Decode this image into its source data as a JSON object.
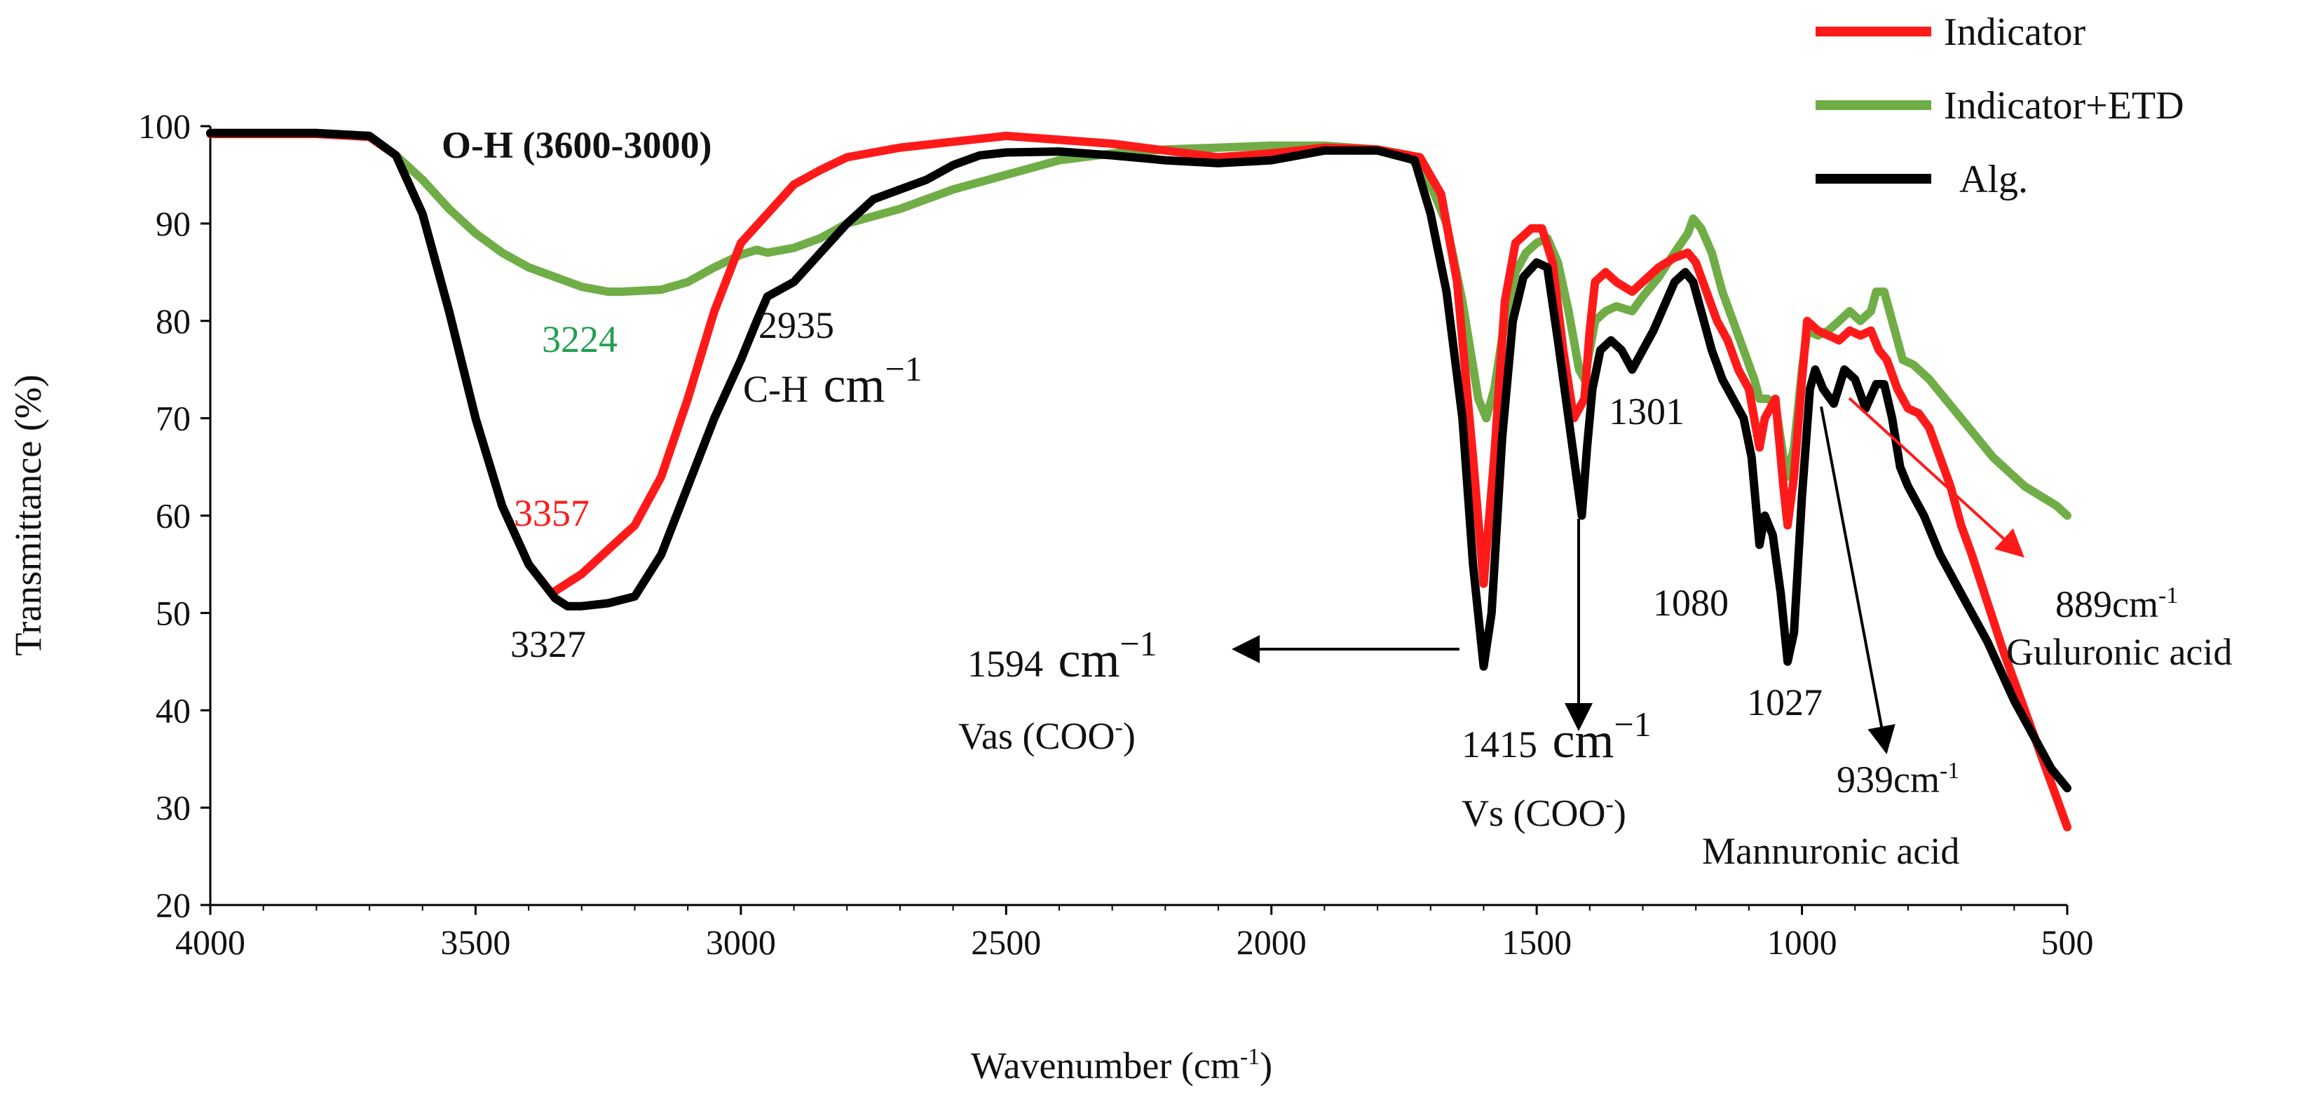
{
  "chart_data": {
    "type": "line",
    "xlabel": "Wavenumber (cm-1)",
    "ylabel": "Transmittance (%)",
    "xlim": [
      4000,
      500
    ],
    "ylim": [
      20,
      100
    ],
    "xticks": [
      4000,
      3500,
      3000,
      2500,
      2000,
      1500,
      1000,
      500
    ],
    "yticks": [
      20,
      30,
      40,
      50,
      60,
      70,
      80,
      90,
      100
    ],
    "legend_position": "top-right",
    "series": [
      {
        "name": "Indicator",
        "color": "#ff1a1a",
        "points": [
          [
            4000,
            99.2
          ],
          [
            3800,
            99.2
          ],
          [
            3700,
            98.9
          ],
          [
            3650,
            97
          ],
          [
            3600,
            91
          ],
          [
            3550,
            81
          ],
          [
            3500,
            70
          ],
          [
            3450,
            61
          ],
          [
            3400,
            55
          ],
          [
            3357,
            52
          ],
          [
            3300,
            54
          ],
          [
            3250,
            56.5
          ],
          [
            3200,
            59
          ],
          [
            3150,
            64
          ],
          [
            3100,
            72
          ],
          [
            3050,
            81
          ],
          [
            3000,
            88
          ],
          [
            2950,
            91
          ],
          [
            2900,
            94
          ],
          [
            2850,
            95.5
          ],
          [
            2800,
            96.8
          ],
          [
            2700,
            97.8
          ],
          [
            2600,
            98.4
          ],
          [
            2500,
            99
          ],
          [
            2400,
            98.6
          ],
          [
            2300,
            98.2
          ],
          [
            2200,
            97.5
          ],
          [
            2100,
            96.8
          ],
          [
            2000,
            97.2
          ],
          [
            1900,
            97.8
          ],
          [
            1800,
            97.6
          ],
          [
            1720,
            96.8
          ],
          [
            1680,
            93
          ],
          [
            1650,
            84
          ],
          [
            1620,
            66
          ],
          [
            1600,
            53
          ],
          [
            1580,
            66
          ],
          [
            1560,
            82
          ],
          [
            1540,
            88
          ],
          [
            1510,
            89.5
          ],
          [
            1490,
            89.5
          ],
          [
            1470,
            86
          ],
          [
            1450,
            77
          ],
          [
            1430,
            70
          ],
          [
            1410,
            72
          ],
          [
            1400,
            79
          ],
          [
            1390,
            84
          ],
          [
            1370,
            85
          ],
          [
            1350,
            84
          ],
          [
            1320,
            83
          ],
          [
            1300,
            84
          ],
          [
            1270,
            85.5
          ],
          [
            1240,
            86.5
          ],
          [
            1215,
            87
          ],
          [
            1200,
            86
          ],
          [
            1180,
            83
          ],
          [
            1160,
            80
          ],
          [
            1140,
            78
          ],
          [
            1120,
            75
          ],
          [
            1100,
            73
          ],
          [
            1080,
            67
          ],
          [
            1070,
            70
          ],
          [
            1050,
            72
          ],
          [
            1035,
            63
          ],
          [
            1027,
            59
          ],
          [
            1015,
            64
          ],
          [
            1000,
            74
          ],
          [
            990,
            80
          ],
          [
            970,
            79
          ],
          [
            950,
            78.5
          ],
          [
            930,
            78
          ],
          [
            910,
            79
          ],
          [
            890,
            78.5
          ],
          [
            870,
            79
          ],
          [
            855,
            77
          ],
          [
            840,
            76
          ],
          [
            820,
            73
          ],
          [
            800,
            71
          ],
          [
            780,
            70.5
          ],
          [
            760,
            69
          ],
          [
            740,
            66
          ],
          [
            720,
            63
          ],
          [
            700,
            59
          ],
          [
            680,
            56
          ],
          [
            650,
            51
          ],
          [
            620,
            46
          ],
          [
            600,
            43
          ],
          [
            580,
            40
          ],
          [
            560,
            37
          ],
          [
            540,
            34
          ],
          [
            520,
            31
          ],
          [
            500,
            28
          ]
        ]
      },
      {
        "name": "Indicator+ETD",
        "color": "#70ad47",
        "points": [
          [
            4000,
            99.3
          ],
          [
            3800,
            99.3
          ],
          [
            3700,
            99
          ],
          [
            3650,
            97
          ],
          [
            3600,
            94.5
          ],
          [
            3550,
            91.5
          ],
          [
            3500,
            89
          ],
          [
            3450,
            87
          ],
          [
            3400,
            85.5
          ],
          [
            3350,
            84.5
          ],
          [
            3300,
            83.5
          ],
          [
            3250,
            83
          ],
          [
            3224,
            83
          ],
          [
            3150,
            83.2
          ],
          [
            3100,
            84
          ],
          [
            3050,
            85.5
          ],
          [
            3000,
            86.8
          ],
          [
            2970,
            87.3
          ],
          [
            2950,
            87
          ],
          [
            2900,
            87.5
          ],
          [
            2850,
            88.5
          ],
          [
            2800,
            90
          ],
          [
            2700,
            91.5
          ],
          [
            2600,
            93.5
          ],
          [
            2500,
            95
          ],
          [
            2400,
            96.5
          ],
          [
            2300,
            97.2
          ],
          [
            2200,
            97.6
          ],
          [
            2100,
            97.8
          ],
          [
            2000,
            98
          ],
          [
            1900,
            98
          ],
          [
            1800,
            97.6
          ],
          [
            1740,
            97
          ],
          [
            1700,
            94
          ],
          [
            1670,
            90
          ],
          [
            1640,
            82
          ],
          [
            1610,
            72
          ],
          [
            1595,
            70
          ],
          [
            1580,
            73
          ],
          [
            1560,
            80
          ],
          [
            1540,
            85
          ],
          [
            1520,
            87
          ],
          [
            1500,
            88
          ],
          [
            1480,
            88.5
          ],
          [
            1460,
            86
          ],
          [
            1440,
            81
          ],
          [
            1420,
            75
          ],
          [
            1410,
            74
          ],
          [
            1400,
            77
          ],
          [
            1390,
            80
          ],
          [
            1370,
            81
          ],
          [
            1350,
            81.5
          ],
          [
            1320,
            81
          ],
          [
            1300,
            82.5
          ],
          [
            1270,
            84.5
          ],
          [
            1240,
            87
          ],
          [
            1215,
            89
          ],
          [
            1205,
            90.5
          ],
          [
            1190,
            89.5
          ],
          [
            1170,
            87
          ],
          [
            1150,
            83
          ],
          [
            1130,
            80
          ],
          [
            1110,
            77
          ],
          [
            1090,
            74
          ],
          [
            1080,
            72
          ],
          [
            1065,
            72
          ],
          [
            1050,
            71.5
          ],
          [
            1035,
            66
          ],
          [
            1027,
            64
          ],
          [
            1015,
            67
          ],
          [
            1000,
            75
          ],
          [
            990,
            79
          ],
          [
            970,
            78.5
          ],
          [
            950,
            79
          ],
          [
            930,
            80
          ],
          [
            910,
            81
          ],
          [
            890,
            80
          ],
          [
            870,
            81
          ],
          [
            860,
            83
          ],
          [
            845,
            83
          ],
          [
            830,
            80
          ],
          [
            810,
            76
          ],
          [
            790,
            75.5
          ],
          [
            760,
            74
          ],
          [
            730,
            72
          ],
          [
            700,
            70
          ],
          [
            670,
            68
          ],
          [
            640,
            66
          ],
          [
            610,
            64.5
          ],
          [
            580,
            63
          ],
          [
            550,
            62
          ],
          [
            520,
            61
          ],
          [
            500,
            60
          ]
        ]
      },
      {
        "name": "Alg.",
        "color": "#000000",
        "points": [
          [
            4000,
            99.3
          ],
          [
            3800,
            99.3
          ],
          [
            3700,
            99
          ],
          [
            3650,
            97
          ],
          [
            3600,
            91
          ],
          [
            3550,
            81
          ],
          [
            3500,
            70
          ],
          [
            3450,
            61
          ],
          [
            3400,
            55
          ],
          [
            3350,
            51.5
          ],
          [
            3327,
            50.7
          ],
          [
            3300,
            50.7
          ],
          [
            3250,
            51
          ],
          [
            3200,
            51.7
          ],
          [
            3150,
            56
          ],
          [
            3100,
            63
          ],
          [
            3050,
            70
          ],
          [
            3000,
            76
          ],
          [
            2970,
            80
          ],
          [
            2950,
            82.5
          ],
          [
            2900,
            84
          ],
          [
            2850,
            87
          ],
          [
            2800,
            90
          ],
          [
            2750,
            92.5
          ],
          [
            2700,
            93.5
          ],
          [
            2650,
            94.5
          ],
          [
            2600,
            96
          ],
          [
            2550,
            97
          ],
          [
            2500,
            97.3
          ],
          [
            2400,
            97.4
          ],
          [
            2300,
            97
          ],
          [
            2200,
            96.5
          ],
          [
            2100,
            96.2
          ],
          [
            2000,
            96.5
          ],
          [
            1950,
            97
          ],
          [
            1900,
            97.5
          ],
          [
            1800,
            97.5
          ],
          [
            1730,
            96.5
          ],
          [
            1700,
            91
          ],
          [
            1670,
            83
          ],
          [
            1640,
            70
          ],
          [
            1620,
            55
          ],
          [
            1600,
            44.5
          ],
          [
            1585,
            50
          ],
          [
            1565,
            68
          ],
          [
            1545,
            80
          ],
          [
            1525,
            84.5
          ],
          [
            1500,
            86
          ],
          [
            1480,
            85.5
          ],
          [
            1460,
            78
          ],
          [
            1440,
            70
          ],
          [
            1425,
            64
          ],
          [
            1415,
            60
          ],
          [
            1405,
            67
          ],
          [
            1395,
            73
          ],
          [
            1380,
            77
          ],
          [
            1360,
            78
          ],
          [
            1340,
            77
          ],
          [
            1320,
            75
          ],
          [
            1300,
            77
          ],
          [
            1280,
            79
          ],
          [
            1260,
            81.5
          ],
          [
            1240,
            84
          ],
          [
            1220,
            85
          ],
          [
            1205,
            84
          ],
          [
            1190,
            81
          ],
          [
            1170,
            77
          ],
          [
            1150,
            74
          ],
          [
            1130,
            72
          ],
          [
            1110,
            70
          ],
          [
            1095,
            66
          ],
          [
            1080,
            57
          ],
          [
            1070,
            60
          ],
          [
            1055,
            58
          ],
          [
            1040,
            52
          ],
          [
            1027,
            45
          ],
          [
            1015,
            48
          ],
          [
            1000,
            62
          ],
          [
            985,
            73
          ],
          [
            975,
            75
          ],
          [
            960,
            73
          ],
          [
            940,
            71.5
          ],
          [
            920,
            75
          ],
          [
            900,
            74
          ],
          [
            880,
            71
          ],
          [
            860,
            73.5
          ],
          [
            845,
            73.5
          ],
          [
            830,
            70
          ],
          [
            815,
            65
          ],
          [
            800,
            63
          ],
          [
            770,
            60
          ],
          [
            740,
            56
          ],
          [
            700,
            52
          ],
          [
            650,
            47
          ],
          [
            600,
            41
          ],
          [
            560,
            37
          ],
          [
            530,
            34
          ],
          [
            500,
            32
          ]
        ]
      }
    ],
    "annotations": {
      "oh_band": "O-H (3600-3000)",
      "p3224": "3224",
      "p2935": "2935",
      "ch": "C-H",
      "cm_unit": "cm",
      "cm_exp": "−1",
      "p3357": "3357",
      "p3327": "3327",
      "p1594": "1594",
      "vas": "Vas (COO",
      "p1415": "1415",
      "vs": "Vs (COO",
      "coo_sup": "-",
      "coo_close": ")",
      "p1301": "1301",
      "p1080": "1080",
      "p1027": "1027",
      "p939": "939cm",
      "p889": "889cm",
      "sup_m1": "-1",
      "guluronic": "Guluronic acid",
      "mannuronic": "Mannuronic acid"
    },
    "xlabel_parts": {
      "main": "Wavenumber (cm",
      "sup": "-1",
      "close": ")"
    }
  }
}
